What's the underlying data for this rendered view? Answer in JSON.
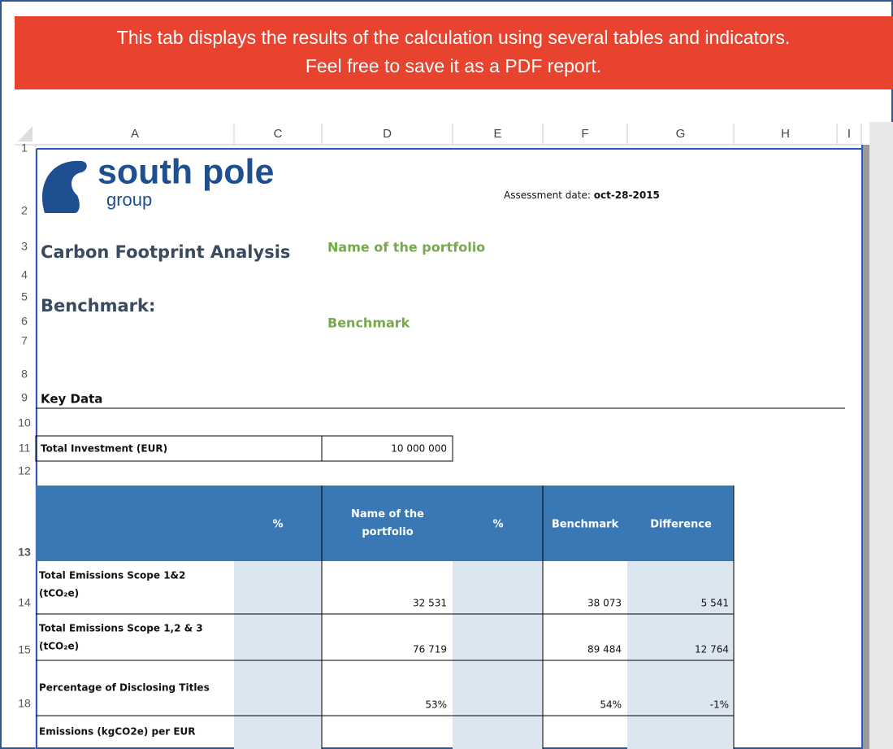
{
  "banner": {
    "lines": [
      "This tab displays the results of the calculation using several tables and indicators.",
      "Feel free to save it as a PDF report."
    ]
  },
  "columns": [
    "A",
    "C",
    "D",
    "E",
    "F",
    "G",
    "H",
    "I"
  ],
  "row_numbers": [
    "2",
    "3",
    "4",
    "5",
    "6",
    "7",
    "8",
    "9",
    "10",
    "11",
    "12",
    "13",
    "14",
    "15",
    "18"
  ],
  "logo": {
    "name": "south pole",
    "sub": "group"
  },
  "assessment": {
    "label": "Assessment date:",
    "date": "oct-28-2015"
  },
  "title": "Carbon Footprint Analysis",
  "portfolio_name": "Name of the portfolio",
  "benchmark_label": "Benchmark:",
  "benchmark_name": "Benchmark",
  "key_data": "Key Data",
  "investment": {
    "label": "Total Investment (EUR)",
    "value": "10 000 000"
  },
  "table": {
    "headers": [
      "%",
      "Name of the portfolio",
      "%",
      "Benchmark",
      "Difference"
    ],
    "rows": [
      {
        "label": [
          "Total Emissions Scope 1&2",
          "(tCO₂e)"
        ],
        "portfolio": "32 531",
        "benchmark": "38 073",
        "difference": "5 541"
      },
      {
        "label": [
          "Total Emissions Scope 1,2 & 3",
          "(tCO₂e)"
        ],
        "portfolio": "76 719",
        "benchmark": "89 484",
        "difference": "12 764"
      },
      {
        "label": [
          "Percentage of Disclosing Titles"
        ],
        "portfolio": "53%",
        "benchmark": "54%",
        "difference": "-1%"
      },
      {
        "label": [
          "Emissions (kgCO2e) per EUR"
        ]
      }
    ]
  }
}
